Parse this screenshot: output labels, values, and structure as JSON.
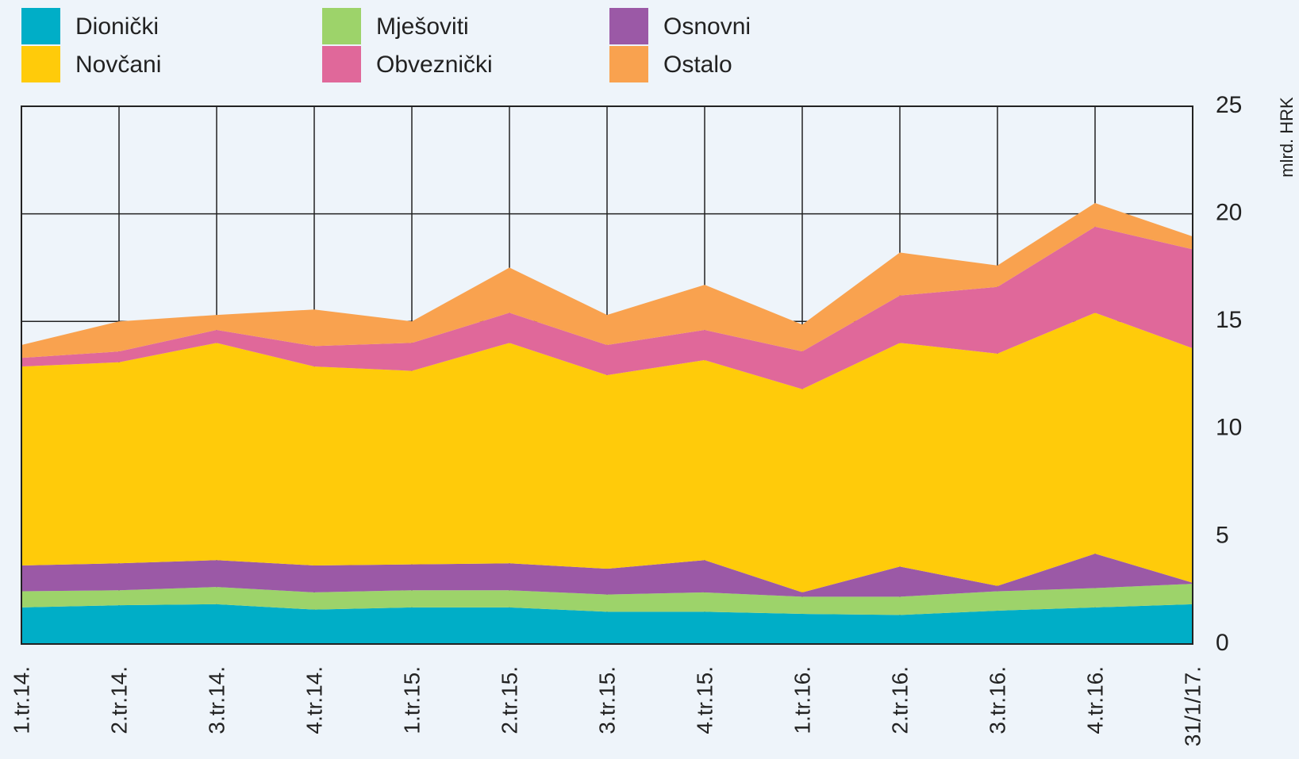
{
  "chart_data": {
    "type": "stacked_area",
    "y_axis_label": "mlrd. HRK",
    "categories": [
      "1.tr.14.",
      "2.tr.14.",
      "3.tr.14.",
      "4.tr.14.",
      "1.tr.15.",
      "2.tr.15.",
      "3.tr.15.",
      "4.tr.15.",
      "1.tr.16.",
      "2.tr.16.",
      "3.tr.16.",
      "4.tr.16.",
      "31/1/17."
    ],
    "series": [
      {
        "name": "Dionički",
        "color": "#00aec7",
        "values": [
          1.7,
          1.8,
          1.85,
          1.6,
          1.7,
          1.7,
          1.5,
          1.5,
          1.4,
          1.35,
          1.55,
          1.7,
          1.85
        ]
      },
      {
        "name": "Mješoviti",
        "color": "#9dd36a",
        "values": [
          0.75,
          0.7,
          0.8,
          0.8,
          0.8,
          0.8,
          0.8,
          0.9,
          0.8,
          0.85,
          0.9,
          0.9,
          0.95
        ]
      },
      {
        "name": "Osnovni",
        "color": "#9b59a6",
        "values": [
          1.2,
          1.25,
          1.25,
          1.25,
          1.2,
          1.25,
          1.2,
          1.5,
          0.2,
          1.4,
          0.25,
          1.6,
          0.05
        ]
      },
      {
        "name": "Novčani",
        "color": "#ffcb0a",
        "values": [
          9.25,
          9.35,
          10.1,
          9.25,
          9.0,
          10.25,
          9.0,
          9.3,
          9.45,
          10.4,
          10.8,
          11.2,
          10.9
        ]
      },
      {
        "name": "Obveznički",
        "color": "#e0689a",
        "values": [
          0.4,
          0.5,
          0.6,
          0.95,
          1.3,
          1.4,
          1.4,
          1.4,
          1.75,
          2.2,
          3.1,
          4.0,
          4.6
        ]
      },
      {
        "name": "Ostalo",
        "color": "#f9a24f",
        "values": [
          0.6,
          1.4,
          0.7,
          1.7,
          1.0,
          2.1,
          1.4,
          2.1,
          1.25,
          2.0,
          1.0,
          1.1,
          0.6
        ]
      }
    ],
    "ylim": [
      0,
      25
    ],
    "yticks": [
      0,
      5,
      10,
      15,
      20,
      25
    ],
    "grid": true,
    "legend": "top"
  }
}
